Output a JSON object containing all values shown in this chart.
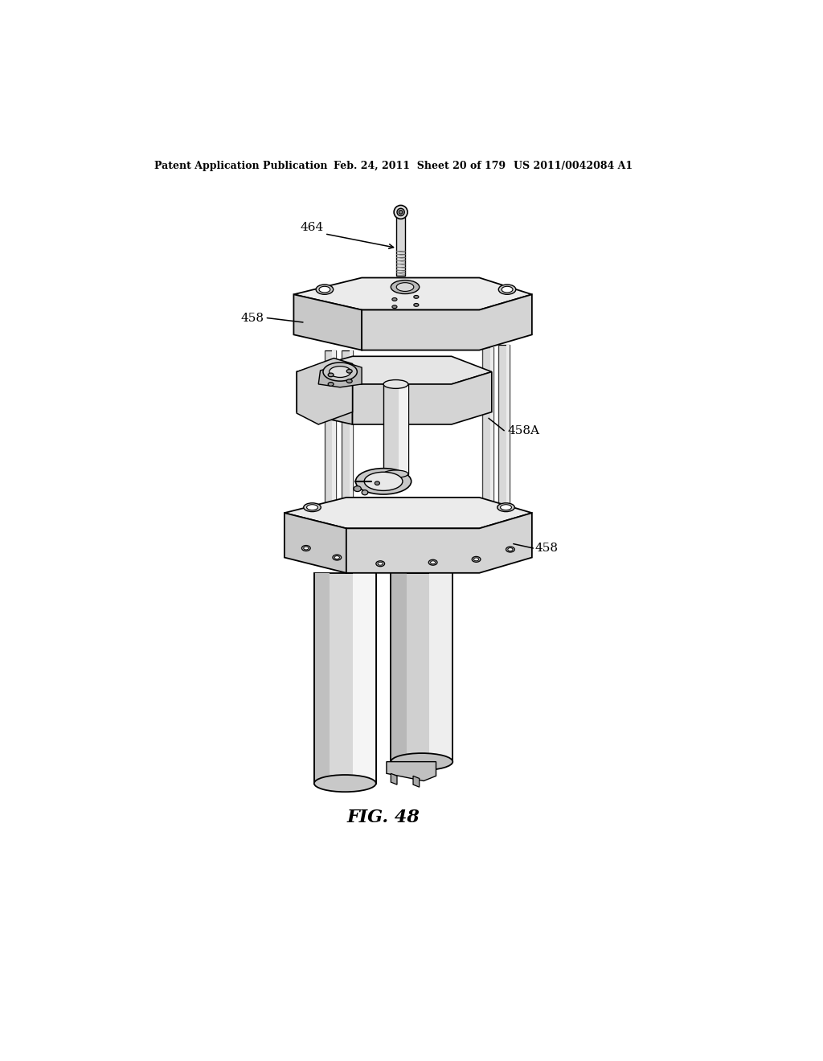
{
  "title": "FIG. 48",
  "header_left": "Patent Application Publication",
  "header_mid": "Feb. 24, 2011  Sheet 20 of 179",
  "header_right": "US 2011/0042084 A1",
  "label_464": "464",
  "label_458_top": "458",
  "label_458A": "458A",
  "label_458_bot": "458",
  "bg_color": "#ffffff",
  "line_color": "#000000",
  "gray_light": "#e8e8e8",
  "gray_mid": "#c8c8c8",
  "gray_dark": "#a0a0a0",
  "gray_col": "#d4d4d4",
  "gray_shadow": "#b8b8b8"
}
